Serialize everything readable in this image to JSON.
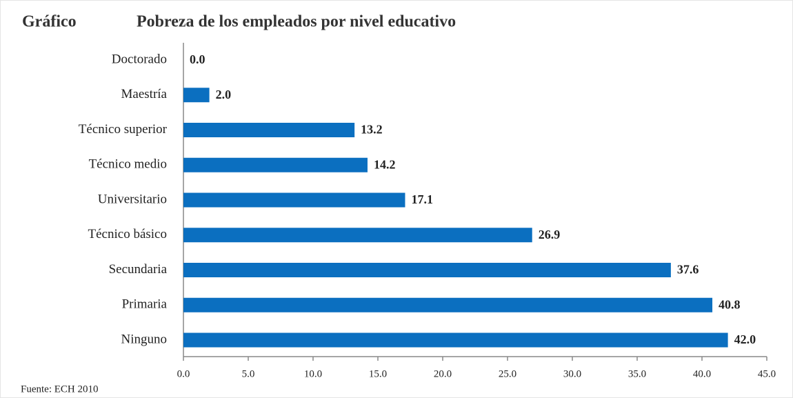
{
  "chart_data": {
    "type": "bar",
    "orientation": "horizontal",
    "figure_label": "Gráfico",
    "title": "Pobreza de los empleados por nivel educativo",
    "source": "Fuente: ECH 2010",
    "categories": [
      "Doctorado",
      "Maestría",
      "Técnico superior",
      "Técnico medio",
      "Universitario",
      "Técnico básico",
      "Secundaria",
      "Primaria",
      "Ninguno"
    ],
    "values": [
      0.0,
      2.0,
      13.2,
      14.2,
      17.1,
      26.9,
      37.6,
      40.8,
      42.0
    ],
    "value_labels": [
      "0.0",
      "2.0",
      "13.2",
      "14.2",
      "17.1",
      "26.9",
      "37.6",
      "40.8",
      "42.0"
    ],
    "color": "#0b6fc0",
    "xlim": [
      0,
      45
    ],
    "xticks": [
      {
        "value": 0,
        "label": "0.0"
      },
      {
        "value": 5,
        "label": "5.0"
      },
      {
        "value": 10,
        "label": "10.0"
      },
      {
        "value": 15,
        "label": "15.0"
      },
      {
        "value": 20,
        "label": "20.0"
      },
      {
        "value": 25,
        "label": "25.0"
      },
      {
        "value": 30,
        "label": "30.0"
      },
      {
        "value": 35,
        "label": "35.0"
      },
      {
        "value": 40,
        "label": "40.0"
      },
      {
        "value": 45,
        "label": "45.0"
      }
    ],
    "grid": false
  }
}
